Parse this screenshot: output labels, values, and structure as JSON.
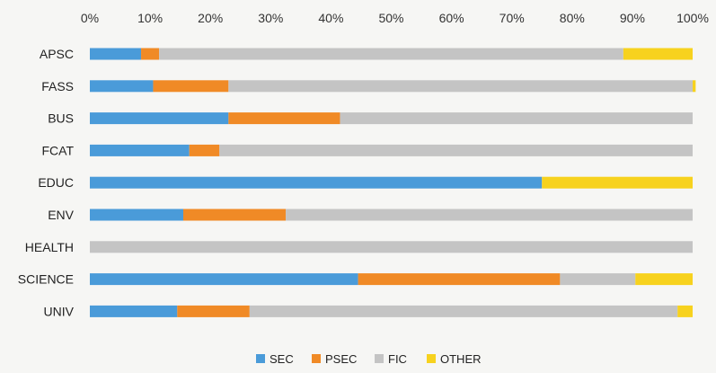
{
  "chart_data": {
    "type": "bar",
    "orientation": "horizontal",
    "stacked": true,
    "title": "",
    "xlabel": "",
    "ylabel": "",
    "xlim": [
      0,
      100
    ],
    "x_tick_labels": [
      "0%",
      "10%",
      "20%",
      "30%",
      "40%",
      "50%",
      "60%",
      "70%",
      "80%",
      "90%",
      "100%"
    ],
    "categories": [
      "APSC",
      "FASS",
      "BUS",
      "FCAT",
      "EDUC",
      "ENV",
      "HEALTH",
      "SCIENCE",
      "UNIV"
    ],
    "series": [
      {
        "name": "SEC",
        "color": "#4a9bd9",
        "values": [
          8.5,
          10.5,
          23,
          16.5,
          75,
          15.5,
          0,
          44.5,
          14.5
        ]
      },
      {
        "name": "PSEC",
        "color": "#f08a26",
        "values": [
          3,
          12.5,
          18.5,
          5,
          0,
          17,
          0,
          33.5,
          12
        ]
      },
      {
        "name": "FIC",
        "color": "#c4c4c4",
        "values": [
          77,
          77,
          58.5,
          78.5,
          0,
          67.5,
          100,
          12.5,
          71
        ]
      },
      {
        "name": "OTHER",
        "color": "#f7d21e",
        "values": [
          11.5,
          0.5,
          0,
          0,
          25,
          0,
          0,
          9.5,
          2.5
        ]
      }
    ],
    "grid": false,
    "legend_position": "bottom-center"
  }
}
